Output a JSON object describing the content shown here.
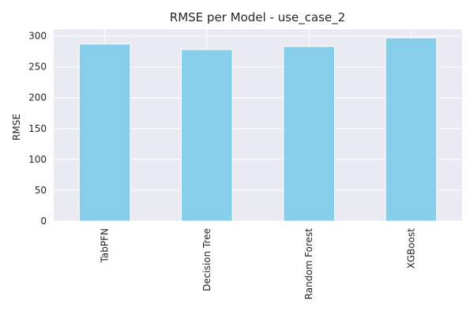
{
  "chart_data": {
    "type": "bar",
    "title": "RMSE per Model - use_case_2",
    "xlabel": "",
    "ylabel": "RMSE",
    "categories": [
      "TabPFN",
      "Decision Tree",
      "Random Forest",
      "XGBoost"
    ],
    "values": [
      287,
      278,
      283,
      297
    ],
    "ylim": [
      0,
      311
    ],
    "yticks": [
      0,
      50,
      100,
      150,
      200,
      250,
      300
    ],
    "grid": true,
    "legend": "none",
    "bar_color": "#87CEEB",
    "background_color": "#EAEAF2",
    "grid_color": "#FFFFFF"
  }
}
